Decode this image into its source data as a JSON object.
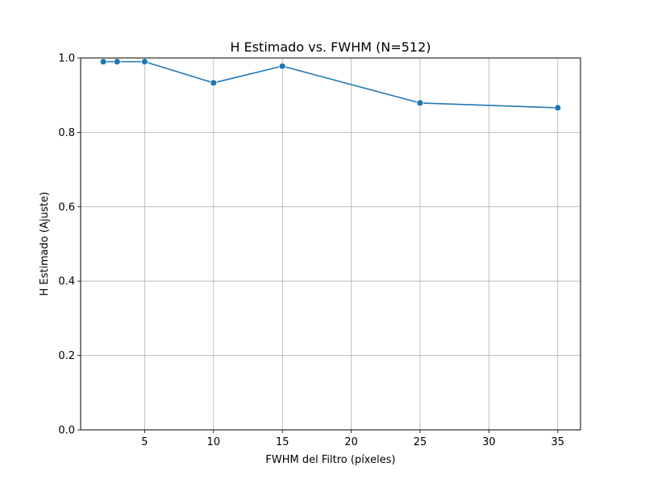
{
  "chart_data": {
    "type": "line",
    "title": "H Estimado vs. FWHM (N=512)",
    "xlabel": "FWHM del Filtro (píxeles)",
    "ylabel": "H Estimado (Ajuste)",
    "xlim": [
      0.35,
      36.65
    ],
    "ylim": [
      0.0,
      1.0
    ],
    "xticks": [
      5,
      10,
      15,
      20,
      25,
      30,
      35
    ],
    "yticks": [
      0.0,
      0.2,
      0.4,
      0.6,
      0.8,
      1.0
    ],
    "xtick_labels": [
      "5",
      "10",
      "15",
      "20",
      "25",
      "30",
      "35"
    ],
    "ytick_labels": [
      "0.0",
      "0.2",
      "0.4",
      "0.6",
      "0.8",
      "1.0"
    ],
    "grid": true,
    "series": [
      {
        "color": "#1f77b4",
        "marker": "circle",
        "x": [
          2,
          3,
          5,
          10,
          15,
          25,
          35
        ],
        "y": [
          0.99,
          0.99,
          0.99,
          0.933,
          0.978,
          0.879,
          0.866
        ]
      }
    ]
  }
}
